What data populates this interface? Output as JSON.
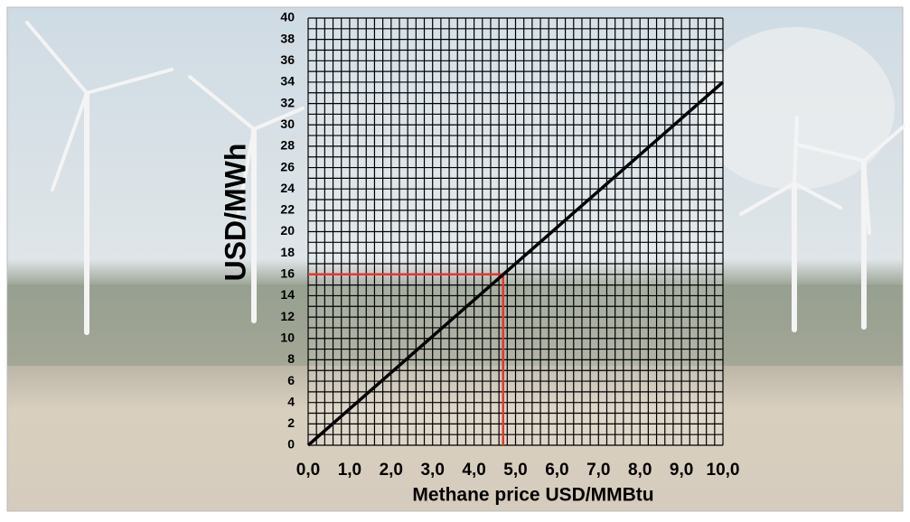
{
  "chart_data": {
    "type": "line",
    "x_label": "Methane price USD/MMBtu",
    "y_label": "USD/MWh",
    "x": [
      0,
      10
    ],
    "series": [
      {
        "color": "#000000",
        "values": [
          0,
          34
        ]
      }
    ],
    "highlight": {
      "x": 4.7,
      "y": 16,
      "color": "#e8352e"
    },
    "xlim": [
      0,
      10
    ],
    "ylim": [
      0,
      40
    ],
    "xticks": [
      {
        "value": 0,
        "label": "0,0"
      },
      {
        "value": 1,
        "label": "1,0"
      },
      {
        "value": 2,
        "label": "2,0"
      },
      {
        "value": 3,
        "label": "3,0"
      },
      {
        "value": 4,
        "label": "4,0"
      },
      {
        "value": 5,
        "label": "5,0"
      },
      {
        "value": 6,
        "label": "6,0"
      },
      {
        "value": 7,
        "label": "7,0"
      },
      {
        "value": 8,
        "label": "8,0"
      },
      {
        "value": 9,
        "label": "9,0"
      },
      {
        "value": 10,
        "label": "10,0"
      }
    ],
    "yticks": [
      0,
      2,
      4,
      6,
      8,
      10,
      12,
      14,
      16,
      18,
      20,
      22,
      24,
      26,
      28,
      30,
      32,
      34,
      36,
      38,
      40
    ],
    "grid": true
  }
}
